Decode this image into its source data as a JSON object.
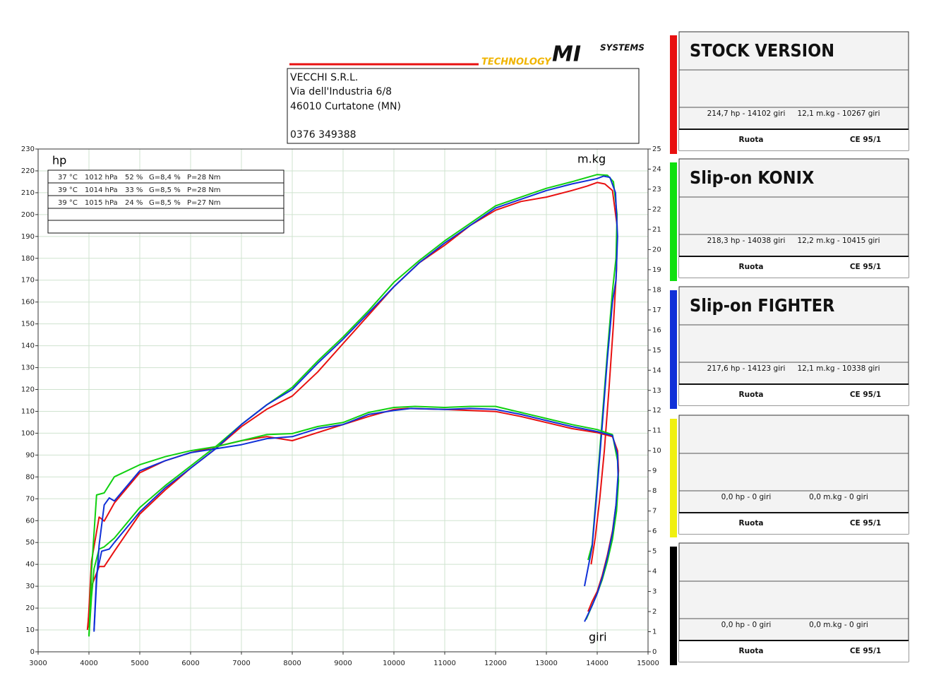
{
  "header": {
    "logo": [
      "TECHNOLOGY",
      "MI",
      "SYSTEMS"
    ],
    "address": [
      "VECCHI S.R.L.",
      "Via dell'Industria 6/8",
      "46010 Curtatone (MN)",
      "0376 349388"
    ]
  },
  "conditions": [
    [
      "37 °C",
      "1012 hPa",
      "52 %",
      "G=8,4 %",
      "P=28 Nm"
    ],
    [
      "39 °C",
      "1014 hPa",
      "33 %",
      "G=8,5 %",
      "P=28 Nm"
    ],
    [
      "39 °C",
      "1015 hPa",
      "24 %",
      "G=8,5 %",
      "P=27 Nm"
    ]
  ],
  "panels": [
    {
      "title": "STOCK VERSION",
      "color": "#e81010",
      "power": "214,7 hp - 14102 giri",
      "torque": "12,1 m.kg - 10267 giri",
      "mode": "Ruota",
      "norm": "CE 95/1"
    },
    {
      "title": "Slip-on KONIX",
      "color": "#10e010",
      "power": "218,3 hp - 14038 giri",
      "torque": "12,2 m.kg - 10415 giri",
      "mode": "Ruota",
      "norm": "CE 95/1"
    },
    {
      "title": "Slip-on FIGHTER",
      "color": "#1030d8",
      "power": "217,6 hp - 14123 giri",
      "torque": "12,1 m.kg - 10338 giri",
      "mode": "Ruota",
      "norm": "CE 95/1"
    },
    {
      "color": "#f0f010",
      "power": "0,0 hp - 0 giri",
      "torque": "0,0 m.kg - 0 giri",
      "mode": "Ruota",
      "norm": "CE 95/1"
    },
    {
      "color": "#000000",
      "power": "0,0 hp - 0 giri",
      "torque": "0,0 m.kg - 0 giri",
      "mode": "Ruota",
      "norm": "CE 95/1"
    }
  ],
  "chart_data": {
    "type": "line",
    "ylabel": "hp",
    "y2label": "m.kg",
    "xlabel": "giri",
    "xlim": [
      3000,
      15000
    ],
    "xticks": [
      3000,
      4000,
      5000,
      6000,
      7000,
      8000,
      9000,
      10000,
      11000,
      12000,
      13000,
      14000,
      15000
    ],
    "ylim": [
      0,
      230
    ],
    "yticks": [
      0,
      10,
      20,
      30,
      40,
      50,
      60,
      70,
      80,
      90,
      100,
      110,
      120,
      130,
      140,
      150,
      160,
      170,
      180,
      190,
      200,
      210,
      220,
      230
    ],
    "y2lim": [
      0,
      25
    ],
    "y2ticks": [
      0,
      1,
      2,
      3,
      4,
      5,
      6,
      7,
      8,
      9,
      10,
      11,
      12,
      13,
      14,
      15,
      16,
      17,
      18,
      19,
      20,
      21,
      22,
      23,
      24,
      25
    ],
    "grid": true,
    "series": [
      {
        "color": "#e81010",
        "axis": "y",
        "x": [
          3970,
          4050,
          4200,
          4300,
          4500,
          5000,
          5500,
          6000,
          6500,
          7000,
          7500,
          8000,
          8500,
          9000,
          9500,
          10000,
          10500,
          11000,
          11500,
          12000,
          12500,
          13000,
          13500,
          13800,
          14000,
          14150,
          14300,
          14390,
          14380,
          14320,
          14230,
          14140,
          14050,
          13960,
          13880
        ],
        "values": [
          10,
          30,
          39,
          39,
          46,
          63,
          74,
          84,
          93,
          103,
          111,
          117,
          128,
          141,
          154,
          167,
          178,
          186,
          195,
          202,
          206,
          208,
          211,
          213,
          214.7,
          214,
          211,
          195,
          175,
          150,
          120,
          92,
          70,
          52,
          40
        ]
      },
      {
        "color": "#10d010",
        "axis": "y",
        "x": [
          4000,
          4050,
          4100,
          4200,
          4300,
          4500,
          5000,
          5500,
          6000,
          6500,
          7000,
          7500,
          8000,
          8500,
          9000,
          9500,
          10000,
          10500,
          11000,
          11500,
          12000,
          12500,
          13000,
          13500,
          14000,
          14200,
          14320,
          14390,
          14370,
          14300,
          14200,
          14100,
          14000,
          13900,
          13820
        ],
        "values": [
          7,
          25,
          38,
          47,
          48,
          52,
          66,
          76,
          85,
          94,
          104,
          113,
          121,
          133,
          144,
          156,
          169,
          179,
          188,
          196,
          204,
          208,
          212,
          215,
          218.3,
          218,
          215,
          200,
          180,
          165,
          137,
          107,
          77,
          49,
          42
        ]
      },
      {
        "color": "#1030d8",
        "axis": "y",
        "x": [
          4100,
          4150,
          4250,
          4400,
          4500,
          5000,
          5500,
          6000,
          6500,
          7000,
          7500,
          8000,
          8500,
          9000,
          9500,
          10000,
          10500,
          11000,
          11500,
          12000,
          12500,
          13000,
          13500,
          14000,
          14123,
          14250,
          14360,
          14400,
          14370,
          14300,
          14200,
          14100,
          14000,
          13900,
          13750
        ],
        "values": [
          10,
          35,
          46,
          47,
          50,
          64,
          75,
          84,
          93,
          104,
          113,
          120,
          132,
          143,
          155,
          167,
          178,
          187,
          195,
          203,
          207,
          211,
          214,
          216.5,
          217.6,
          217,
          210,
          190,
          170,
          160,
          134,
          104,
          75,
          48,
          30
        ]
      },
      {
        "color": "#e81010",
        "axis": "y2",
        "x": [
          3980,
          4050,
          4200,
          4300,
          4500,
          5000,
          5500,
          6000,
          6500,
          7000,
          7500,
          8000,
          8500,
          9000,
          9500,
          10000,
          10267,
          11000,
          11500,
          12000,
          12500,
          13000,
          13500,
          14000,
          14300,
          14400,
          14420,
          14380,
          14300,
          14200,
          14100,
          14000,
          13900,
          13820
        ],
        "values": [
          1.2,
          4.5,
          6.7,
          6.5,
          7.4,
          8.9,
          9.5,
          9.9,
          10.2,
          10.5,
          10.7,
          10.5,
          10.9,
          11.3,
          11.7,
          12.05,
          12.1,
          12.05,
          12.0,
          11.95,
          11.7,
          11.4,
          11.1,
          10.9,
          10.7,
          10.0,
          9.0,
          7.5,
          6.0,
          4.8,
          3.8,
          3.0,
          2.5,
          2.0
        ]
      },
      {
        "color": "#10d010",
        "axis": "y2",
        "x": [
          4000,
          4050,
          4150,
          4300,
          4500,
          5000,
          5500,
          6000,
          6500,
          7000,
          7500,
          8000,
          8500,
          9000,
          9500,
          10000,
          10415,
          11000,
          11500,
          12000,
          12500,
          13000,
          13500,
          14000,
          14300,
          14400,
          14420,
          14380,
          14300,
          14200,
          14100,
          14000,
          13900,
          13780
        ],
        "values": [
          0.8,
          4.0,
          7.8,
          7.9,
          8.7,
          9.3,
          9.7,
          10.0,
          10.2,
          10.5,
          10.8,
          10.85,
          11.2,
          11.4,
          11.9,
          12.15,
          12.2,
          12.15,
          12.2,
          12.2,
          11.9,
          11.6,
          11.3,
          11.05,
          10.8,
          9.5,
          8.5,
          7.0,
          5.6,
          4.5,
          3.6,
          2.9,
          2.3,
          1.6
        ]
      },
      {
        "color": "#1030d8",
        "axis": "y2",
        "x": [
          4100,
          4150,
          4200,
          4300,
          4400,
          4500,
          5000,
          5500,
          6000,
          6500,
          7000,
          7500,
          8000,
          8500,
          9000,
          9500,
          10000,
          10338,
          11000,
          11500,
          12000,
          12500,
          13000,
          13500,
          14000,
          14300,
          14400,
          14410,
          14370,
          14300,
          14200,
          14100,
          14000,
          13900,
          13750
        ],
        "values": [
          1.0,
          3.5,
          5.3,
          7.3,
          7.65,
          7.5,
          9.0,
          9.5,
          9.9,
          10.1,
          10.3,
          10.6,
          10.7,
          11.1,
          11.3,
          11.8,
          12.0,
          12.1,
          12.05,
          12.1,
          12.05,
          11.8,
          11.5,
          11.2,
          10.95,
          10.75,
          9.8,
          8.8,
          7.3,
          5.9,
          4.7,
          3.7,
          2.9,
          2.3,
          1.5
        ]
      }
    ]
  }
}
